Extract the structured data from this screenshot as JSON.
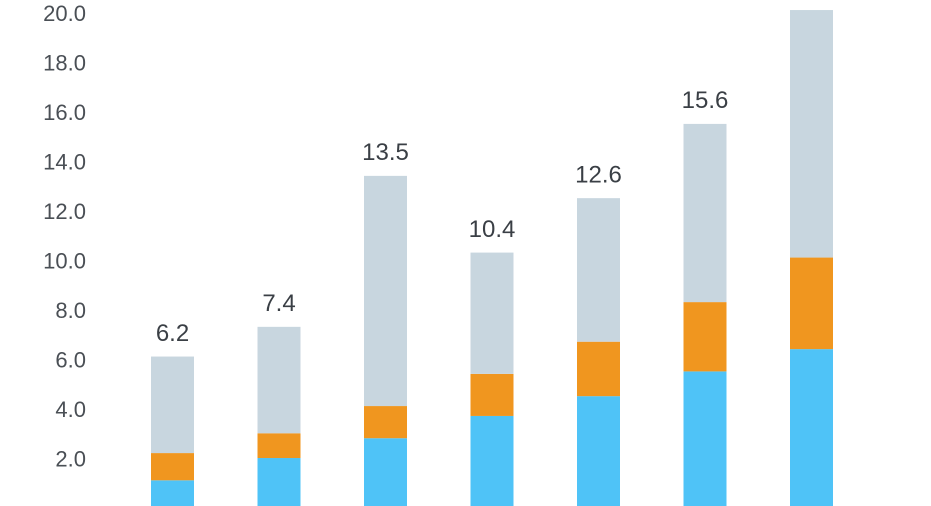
{
  "chart_data": {
    "type": "bar",
    "stacked": true,
    "categories": [
      "",
      "",
      "",
      "",
      "",
      "",
      ""
    ],
    "series": [
      {
        "values": [
          1.2,
          2.1,
          2.9,
          3.8,
          4.6,
          5.6,
          6.5
        ],
        "color": "#4fc3f7"
      },
      {
        "values": [
          1.1,
          1.0,
          1.3,
          1.7,
          2.2,
          2.8,
          3.7
        ],
        "color": "#f0961f"
      },
      {
        "values": [
          3.9,
          4.3,
          9.3,
          4.9,
          5.8,
          7.2,
          10.0
        ],
        "color": "#c8d6df"
      }
    ],
    "totals": [
      "6.2",
      "7.4",
      "13.5",
      "10.4",
      "12.6",
      "15.6",
      ""
    ],
    "yticks": [
      "2.0",
      "4.0",
      "6.0",
      "8.0",
      "10.0",
      "12.0",
      "14.0",
      "16.0",
      "18.0",
      "20.0"
    ],
    "ylim": [
      0,
      20.2
    ],
    "grid": false,
    "legend": "none",
    "title": "",
    "xlabel": "",
    "ylabel": ""
  }
}
